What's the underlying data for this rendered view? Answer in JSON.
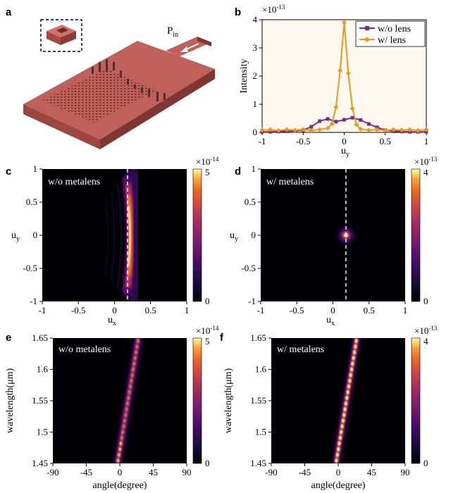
{
  "panel_a": {
    "label": "a",
    "pin_label": "P",
    "pin_sub": "in"
  },
  "chart_data": [
    {
      "panel": "b",
      "type": "line",
      "xlabel": "u",
      "xlabel_sub": "y",
      "ylabel": "Intensity",
      "exponent_base": "×10",
      "exponent": "-13",
      "xlim": [
        -1,
        1
      ],
      "ylim": [
        0,
        4
      ],
      "xticks": [
        "-1",
        "-0.5",
        "0",
        "0.5",
        "1"
      ],
      "yticks": [
        "0",
        "1",
        "2",
        "3",
        "4"
      ],
      "legend_position": "top-right",
      "series": [
        {
          "name": "w/o lens",
          "color": "#7b2d80",
          "marker": "square",
          "x": [
            -1,
            -0.9,
            -0.8,
            -0.7,
            -0.6,
            -0.5,
            -0.4,
            -0.3,
            -0.2,
            -0.1,
            0,
            0.1,
            0.2,
            0.3,
            0.4,
            0.5,
            0.6,
            0.7,
            0.8,
            0.9,
            1
          ],
          "y": [
            0.02,
            0.02,
            0.03,
            0.04,
            0.05,
            0.08,
            0.2,
            0.4,
            0.48,
            0.38,
            0.45,
            0.52,
            0.44,
            0.3,
            0.18,
            0.08,
            0.04,
            0.03,
            0.02,
            0.02,
            0.02
          ]
        },
        {
          "name": "w/ lens",
          "color": "#e69b1a",
          "marker": "diamond",
          "x": [
            -1,
            -0.9,
            -0.8,
            -0.7,
            -0.6,
            -0.5,
            -0.4,
            -0.3,
            -0.2,
            -0.15,
            -0.1,
            -0.05,
            0,
            0.05,
            0.1,
            0.15,
            0.2,
            0.3,
            0.4,
            0.5,
            0.6,
            0.7,
            0.8,
            0.9,
            1
          ],
          "y": [
            0.08,
            0.1,
            0.07,
            0.1,
            0.08,
            0.1,
            0.07,
            0.1,
            0.15,
            0.3,
            0.9,
            2.2,
            3.9,
            2.1,
            0.85,
            0.28,
            0.12,
            0.08,
            0.1,
            0.07,
            0.1,
            0.08,
            0.1,
            0.07,
            0.1
          ]
        }
      ]
    },
    {
      "panel": "c",
      "type": "heatmap",
      "label": "w/o metalens",
      "xlabel": "u",
      "xlabel_sub": "x",
      "ylabel": "u",
      "ylabel_sub": "y",
      "xlim": [
        -1,
        1
      ],
      "ylim": [
        -1,
        1
      ],
      "xticks": [
        "-1",
        "-0.5",
        "0",
        "0.5",
        "1"
      ],
      "yticks": [
        "-1",
        "-0.5",
        "0",
        "0.5",
        "1"
      ],
      "cbar_range": [
        "0",
        "5"
      ],
      "cbar_exponent_base": "×10",
      "cbar_exponent": "-14",
      "dashed_line_x": 0.18
    },
    {
      "panel": "d",
      "type": "heatmap",
      "label": "w/ metalens",
      "xlabel": "u",
      "xlabel_sub": "x",
      "ylabel": "u",
      "ylabel_sub": "y",
      "xlim": [
        -1,
        1
      ],
      "ylim": [
        -1,
        1
      ],
      "xticks": [
        "-1",
        "-0.5",
        "0",
        "0.5",
        "1"
      ],
      "yticks": [
        "-1",
        "-0.5",
        "0",
        "0.5",
        "1"
      ],
      "cbar_range": [
        "0",
        "4"
      ],
      "cbar_exponent_base": "×10",
      "cbar_exponent": "-13",
      "dashed_line_x": 0.18,
      "focal_spot": [
        0.18,
        0.0
      ]
    },
    {
      "panel": "e",
      "type": "heatmap",
      "label": "w/o metalens",
      "xlabel": "angle(degree)",
      "ylabel": "wavelength(μm)",
      "xlim": [
        -90,
        90
      ],
      "ylim": [
        1.45,
        1.65
      ],
      "xticks": [
        "-90",
        "-45",
        "0",
        "45",
        "90"
      ],
      "yticks": [
        "1.45",
        "1.5",
        "1.55",
        "1.6",
        "1.65"
      ],
      "cbar_range": [
        "0",
        "5"
      ],
      "cbar_exponent_base": "×10",
      "cbar_exponent": "-14",
      "beam_angle_range": [
        -3,
        25
      ]
    },
    {
      "panel": "f",
      "type": "heatmap",
      "label": "w/ metalens",
      "xlabel": "angle(degree)",
      "ylabel": "wavelength(μm)",
      "xlim": [
        -90,
        90
      ],
      "ylim": [
        1.45,
        1.65
      ],
      "xticks": [
        "-90",
        "-45",
        "0",
        "45",
        "90"
      ],
      "yticks": [
        "1.45",
        "1.5",
        "1.55",
        "1.6",
        "1.65"
      ],
      "cbar_range": [
        "0",
        "4"
      ],
      "cbar_exponent_base": "×10",
      "cbar_exponent": "-13",
      "beam_angle_range": [
        -3,
        25
      ]
    }
  ]
}
